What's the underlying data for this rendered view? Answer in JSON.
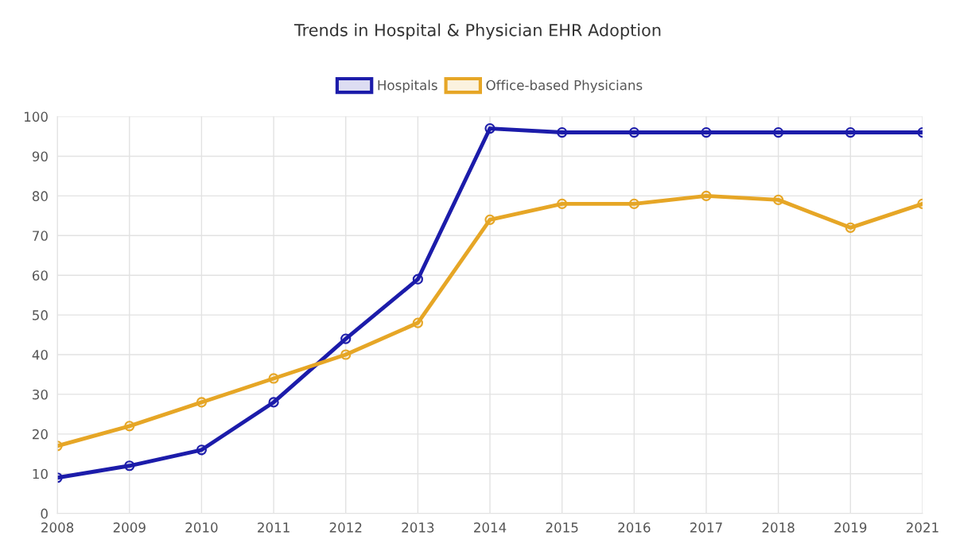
{
  "chart_data": {
    "type": "line",
    "title": "Trends in Hospital & Physician EHR Adoption",
    "categories": [
      "2008",
      "2009",
      "2010",
      "2011",
      "2012",
      "2013",
      "2014",
      "2015",
      "2016",
      "2017",
      "2018",
      "2019",
      "2021"
    ],
    "series": [
      {
        "name": "Hospitals",
        "color": "#1c1caa",
        "values": [
          9,
          12,
          16,
          28,
          44,
          59,
          97,
          96,
          96,
          96,
          96,
          96,
          96
        ]
      },
      {
        "name": "Office-based Physicians",
        "color": "#e6a626",
        "values": [
          17,
          22,
          28,
          34,
          40,
          48,
          74,
          78,
          78,
          80,
          79,
          72,
          78
        ]
      }
    ],
    "ylim": [
      0,
      100
    ],
    "yticks": [
      0,
      10,
      20,
      30,
      40,
      50,
      60,
      70,
      80,
      90,
      100
    ],
    "grid": true,
    "legend": "top",
    "marker": "circle",
    "line_style": "solid"
  }
}
